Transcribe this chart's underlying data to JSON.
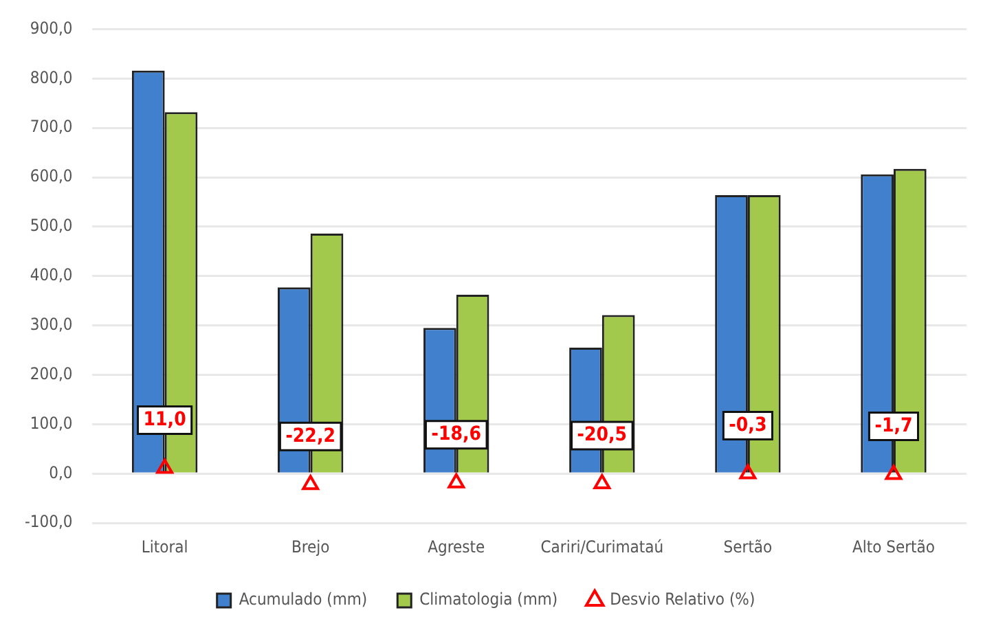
{
  "chart_data": {
    "type": "bar",
    "categories": [
      "Litoral",
      "Brejo",
      "Agreste",
      "Cariri/Curimataú",
      "Sertão",
      "Alto Sertão"
    ],
    "series": [
      {
        "name": "Acumulado (mm)",
        "color": "#4080cc",
        "values": [
          816,
          377,
          295,
          255,
          564,
          606
        ]
      },
      {
        "name": "Climatologia (mm)",
        "color": "#a2c84c",
        "values": [
          732,
          486,
          362,
          321,
          564,
          617
        ]
      },
      {
        "name": "Desvio Relativo (%)",
        "type": "scatter",
        "color": "#ff0000",
        "marker": "triangle",
        "values": [
          11.0,
          -22.2,
          -18.6,
          -20.5,
          -0.3,
          -1.7
        ],
        "value_labels": [
          "11,0",
          "-22,2",
          "-18,6",
          "-20,5",
          "-0,3",
          "-1,7"
        ]
      }
    ],
    "ylim": [
      -100,
      900
    ],
    "yticks": [
      {
        "value": -100,
        "label": "-100,0"
      },
      {
        "value": 0,
        "label": "0,0"
      },
      {
        "value": 100,
        "label": "100,0"
      },
      {
        "value": 200,
        "label": "200,0"
      },
      {
        "value": 300,
        "label": "300,0"
      },
      {
        "value": 400,
        "label": "400,0"
      },
      {
        "value": 500,
        "label": "500,0"
      },
      {
        "value": 600,
        "label": "600,0"
      },
      {
        "value": 700,
        "label": "700,0"
      },
      {
        "value": 800,
        "label": "800,0"
      },
      {
        "value": 900,
        "label": "900,0"
      }
    ],
    "grid": "y",
    "legend": "bottom"
  }
}
